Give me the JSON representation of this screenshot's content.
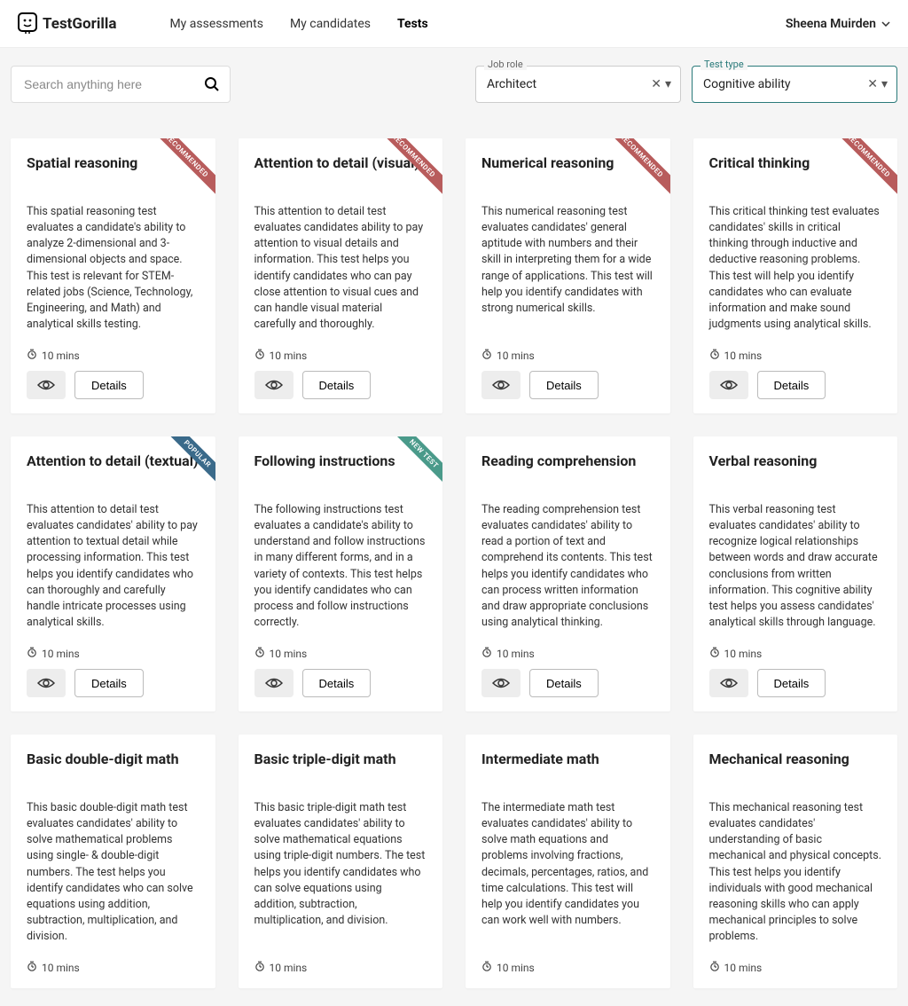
{
  "brand": "TestGorilla",
  "nav": {
    "assessments": "My assessments",
    "candidates": "My candidates",
    "tests": "Tests"
  },
  "user": "Sheena Muirden",
  "search": {
    "placeholder": "Search anything here"
  },
  "filters": {
    "jobrole": {
      "label": "Job role",
      "value": "Architect"
    },
    "testtype": {
      "label": "Test type",
      "value": "Cognitive ability"
    }
  },
  "labels": {
    "details": "Details",
    "recommended": "RECOMMENDED",
    "popular": "POPULAR",
    "newtest": "NEW TEST"
  },
  "cards": [
    {
      "title": "Spatial reasoning",
      "desc": "This spatial reasoning test evaluates a candidate's ability to analyze 2-dimensional and 3-dimensional objects and space. This test is relevant for STEM-related jobs (Science, Technology, Engineering, and Math) and analytical skills testing.",
      "time": "10 mins",
      "ribbon": "recommended"
    },
    {
      "title": "Attention to detail (visual)",
      "desc": "This attention to detail test evaluates candidates ability to pay attention to visual details and information. This test helps you identify candidates who can pay close attention to visual cues and can handle visual material carefully and thoroughly.",
      "time": "10 mins",
      "ribbon": "recommended"
    },
    {
      "title": "Numerical reasoning",
      "desc": "This numerical reasoning test evaluates candidates' general aptitude with numbers and their skill in interpreting them for a wide range of applications. This test will help you identify candidates with strong numerical skills.",
      "time": "10 mins",
      "ribbon": "recommended"
    },
    {
      "title": "Critical thinking",
      "desc": "This critical thinking test evaluates candidates' skills in critical thinking through inductive and deductive reasoning problems. This test will help you identify candidates who can evaluate information and make sound judgments using analytical skills.",
      "time": "10 mins",
      "ribbon": "recommended"
    },
    {
      "title": "Attention to detail (textual)",
      "desc": "This attention to detail test evaluates candidates' ability to pay attention to textual detail while processing information. This test helps you identify candidates who can thoroughly and carefully handle intricate processes using analytical skills.",
      "time": "10 mins",
      "ribbon": "popular"
    },
    {
      "title": "Following instructions",
      "desc": "The following instructions test evaluates a candidate's ability to understand and follow instructions in many different forms, and in a variety of contexts. This test helps you identify candidates who can process and follow instructions correctly.",
      "time": "10 mins",
      "ribbon": "newtest"
    },
    {
      "title": "Reading comprehension",
      "desc": "The reading comprehension test evaluates candidates' ability to read a portion of text and comprehend its contents. This test helps you identify candidates who can process written information and draw appropriate conclusions using analytical thinking.",
      "time": "10 mins",
      "ribbon": ""
    },
    {
      "title": "Verbal reasoning",
      "desc": "This verbal reasoning test evaluates candidates' ability to recognize logical relationships between words and draw accurate conclusions from written information. This cognitive ability test helps you assess candidates' analytical skills through language.",
      "time": "10 mins",
      "ribbon": ""
    },
    {
      "title": "Basic double-digit math",
      "desc": "This basic double-digit math test evaluates candidates' ability to solve mathematical problems using single- & double-digit numbers. The test helps you identify candidates who can solve equations using addition, subtraction, multiplication, and division.",
      "time": "10 mins",
      "ribbon": ""
    },
    {
      "title": "Basic triple-digit math",
      "desc": "This basic triple-digit math test evaluates candidates' ability to solve mathematical equations using triple-digit numbers. The test helps you identify candidates who can solve equations using addition, subtraction, multiplication, and division.",
      "time": "10 mins",
      "ribbon": ""
    },
    {
      "title": "Intermediate math",
      "desc": "The intermediate math test evaluates candidates' ability to solve math equations and problems involving fractions, decimals, percentages, ratios, and time calculations. This test will help you identify candidates you can work well with numbers.",
      "time": "10 mins",
      "ribbon": ""
    },
    {
      "title": "Mechanical reasoning",
      "desc": "This mechanical reasoning test evaluates candidates' understanding of basic mechanical and physical concepts. This test helps you identify individuals with good mechanical reasoning skills who can apply mechanical principles to solve problems.",
      "time": "10 mins",
      "ribbon": ""
    }
  ]
}
